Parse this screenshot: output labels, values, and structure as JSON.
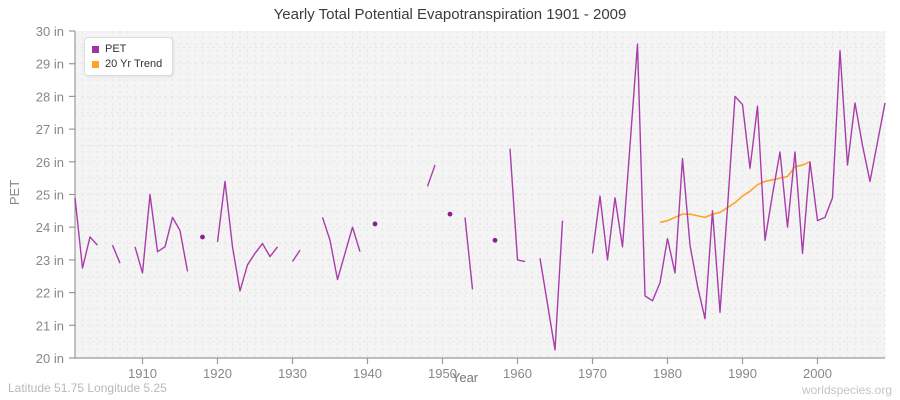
{
  "title": "Yearly Total Potential Evapotranspiration 1901 - 2009",
  "axes": {
    "x_label": "Year",
    "y_label": "PET",
    "y_tick_suffix": " in"
  },
  "legend": {
    "items": [
      {
        "label": "PET",
        "color": "#a234a2"
      },
      {
        "label": "20 Yr Trend",
        "color": "#ffa326"
      }
    ]
  },
  "footer": {
    "left": "Latitude 51.75 Longitude 5.25",
    "right": "worldspecies.org"
  },
  "colors": {
    "pet_line": "#a93caa",
    "pet_marker": "#8d1d8d",
    "trend_line": "#ffa326",
    "plot_bg": "#f4f4f4",
    "grid": "#e3e3e3",
    "axis": "#999999",
    "tick_text": "#888888"
  },
  "chart_data": {
    "type": "line",
    "title": "Yearly Total Potential Evapotranspiration 1901 - 2009",
    "xlabel": "Year",
    "ylabel": "PET",
    "xlim": [
      1901,
      2009
    ],
    "ylim": [
      20,
      30
    ],
    "x_ticks": [
      1910,
      1920,
      1930,
      1940,
      1950,
      1960,
      1970,
      1980,
      1990,
      2000
    ],
    "y_ticks": [
      20,
      21,
      22,
      23,
      24,
      25,
      26,
      27,
      28,
      29,
      30
    ],
    "grid": true,
    "legend_position": "top-left",
    "series": [
      {
        "name": "PET",
        "start_year": 1901,
        "values": [
          24.9,
          22.75,
          23.7,
          23.45,
          null,
          23.45,
          22.9,
          null,
          23.4,
          22.6,
          25.0,
          23.25,
          23.4,
          24.3,
          23.9,
          22.65,
          null,
          23.7,
          null,
          23.55,
          25.4,
          23.4,
          22.05,
          22.85,
          23.2,
          23.5,
          23.1,
          23.4,
          null,
          22.95,
          23.3,
          null,
          null,
          24.3,
          23.6,
          22.4,
          23.2,
          24.0,
          23.25,
          null,
          24.1,
          null,
          null,
          null,
          null,
          null,
          null,
          25.25,
          25.9,
          null,
          24.4,
          null,
          24.3,
          22.1,
          null,
          null,
          23.6,
          null,
          26.4,
          23.0,
          22.95,
          null,
          23.05,
          21.65,
          20.25,
          24.2,
          null,
          null,
          null,
          23.2,
          24.95,
          23.0,
          24.9,
          23.4,
          26.5,
          29.6,
          21.9,
          21.75,
          22.3,
          23.65,
          22.6,
          26.1,
          23.45,
          22.2,
          21.2,
          24.5,
          21.4,
          24.6,
          28.0,
          27.75,
          25.8,
          27.7,
          23.6,
          25.0,
          26.3,
          24.0,
          26.3,
          23.2,
          26.0,
          24.2,
          24.3,
          24.9,
          29.4,
          25.9,
          27.8,
          26.5,
          25.4,
          26.6,
          27.8
        ]
      },
      {
        "name": "20 Yr Trend",
        "start_year": 1979,
        "values": [
          24.15,
          24.2,
          24.3,
          24.4,
          24.4,
          24.35,
          24.3,
          24.4,
          24.45,
          24.6,
          24.75,
          24.95,
          25.1,
          25.3,
          25.4,
          25.45,
          25.5,
          25.55,
          25.85,
          25.9,
          26.0
        ]
      }
    ]
  }
}
